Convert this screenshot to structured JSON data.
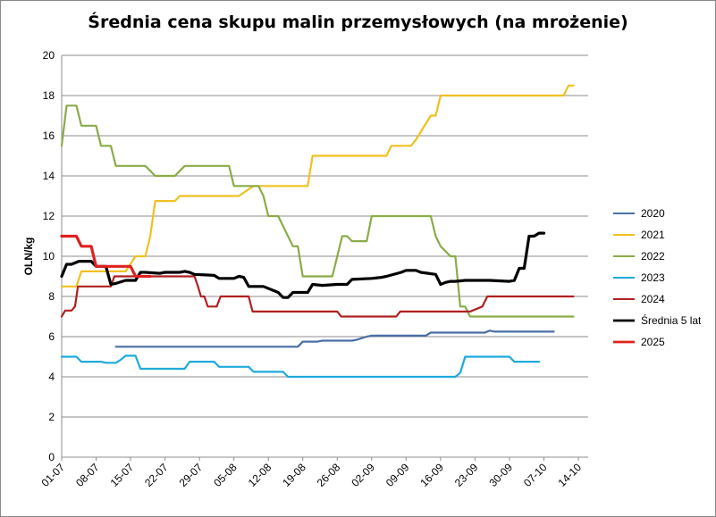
{
  "chart_data": {
    "type": "line",
    "title": "Średnia cena skupu malin przemysłowych (na mrożenie)",
    "ylabel": "OLN/kg",
    "xlabel": "",
    "ylim": [
      0,
      20
    ],
    "yticks": [
      "0",
      "2",
      "4",
      "6",
      "8",
      "10",
      "12",
      "14",
      "16",
      "18",
      "20"
    ],
    "xlim": [
      0,
      107
    ],
    "xticks": [
      {
        "label": "01-07",
        "x": 0
      },
      {
        "label": "08-07",
        "x": 7
      },
      {
        "label": "15-07",
        "x": 14
      },
      {
        "label": "22-07",
        "x": 21
      },
      {
        "label": "29-07",
        "x": 28
      },
      {
        "label": "05-08",
        "x": 35
      },
      {
        "label": "12-08",
        "x": 42
      },
      {
        "label": "19-08",
        "x": 49
      },
      {
        "label": "26-08",
        "x": 56
      },
      {
        "label": "02-09",
        "x": 63
      },
      {
        "label": "09-09",
        "x": 70
      },
      {
        "label": "16-09",
        "x": 77
      },
      {
        "label": "23-09",
        "x": 84
      },
      {
        "label": "30-09",
        "x": 91
      },
      {
        "label": "07-10",
        "x": 98
      },
      {
        "label": "14-10",
        "x": 105
      }
    ],
    "grid": true,
    "legend_position": "right",
    "series": [
      {
        "name": "2020",
        "color": "#4a6fa5",
        "width": 2.2,
        "points": [
          [
            11,
            5.5
          ],
          [
            14,
            5.5
          ],
          [
            21,
            5.5
          ],
          [
            28,
            5.5
          ],
          [
            35,
            5.5
          ],
          [
            42,
            5.5
          ],
          [
            48,
            5.5
          ],
          [
            49,
            5.75
          ],
          [
            52,
            5.75
          ],
          [
            53,
            5.8
          ],
          [
            59,
            5.8
          ],
          [
            60,
            5.85
          ],
          [
            62,
            6.0
          ],
          [
            63,
            6.05
          ],
          [
            74,
            6.05
          ],
          [
            75,
            6.2
          ],
          [
            86,
            6.2
          ],
          [
            87,
            6.3
          ],
          [
            88,
            6.25
          ],
          [
            100,
            6.25
          ]
        ]
      },
      {
        "name": "2021",
        "color": "#f0c020",
        "width": 2.2,
        "points": [
          [
            0,
            8.5
          ],
          [
            3,
            8.5
          ],
          [
            4,
            9.25
          ],
          [
            8,
            9.25
          ],
          [
            13,
            9.25
          ],
          [
            15,
            10.0
          ],
          [
            17,
            10.0
          ],
          [
            18,
            11.0
          ],
          [
            19,
            12.75
          ],
          [
            23,
            12.75
          ],
          [
            24,
            13.0
          ],
          [
            36,
            13.0
          ],
          [
            39,
            13.5
          ],
          [
            48,
            13.5
          ],
          [
            50,
            13.5
          ],
          [
            51,
            15.0
          ],
          [
            56,
            15.0
          ],
          [
            66,
            15.0
          ],
          [
            67,
            15.5
          ],
          [
            71,
            15.5
          ],
          [
            72,
            15.8
          ],
          [
            73,
            16.2
          ],
          [
            75,
            17.0
          ],
          [
            76,
            17.0
          ],
          [
            77,
            18.0
          ],
          [
            85,
            18.0
          ],
          [
            102,
            18.0
          ],
          [
            103,
            18.5
          ],
          [
            104,
            18.5
          ]
        ]
      },
      {
        "name": "2022",
        "color": "#8aac48",
        "width": 2.2,
        "points": [
          [
            0,
            15.5
          ],
          [
            1,
            17.5
          ],
          [
            3,
            17.5
          ],
          [
            4,
            16.5
          ],
          [
            7,
            16.5
          ],
          [
            8,
            15.5
          ],
          [
            10,
            15.5
          ],
          [
            11,
            14.5
          ],
          [
            17,
            14.5
          ],
          [
            19,
            14.0
          ],
          [
            23,
            14.0
          ],
          [
            25,
            14.5
          ],
          [
            32,
            14.5
          ],
          [
            34,
            14.5
          ],
          [
            35,
            13.5
          ],
          [
            40,
            13.5
          ],
          [
            41,
            13.0
          ],
          [
            42,
            12.0
          ],
          [
            44,
            12.0
          ],
          [
            46,
            11.0
          ],
          [
            47,
            10.5
          ],
          [
            48,
            10.5
          ],
          [
            49,
            9.0
          ],
          [
            54,
            9.0
          ],
          [
            55,
            9.0
          ],
          [
            56,
            10.0
          ],
          [
            57,
            11.0
          ],
          [
            58,
            11.0
          ],
          [
            59,
            10.75
          ],
          [
            61,
            10.75
          ],
          [
            62,
            10.75
          ],
          [
            63,
            12.0
          ],
          [
            75,
            12.0
          ],
          [
            76,
            11.0
          ],
          [
            77,
            10.5
          ],
          [
            79,
            10.0
          ],
          [
            80,
            10.0
          ],
          [
            81,
            7.5
          ],
          [
            82,
            7.5
          ],
          [
            83,
            7.0
          ],
          [
            98,
            7.0
          ],
          [
            104,
            7.0
          ]
        ]
      },
      {
        "name": "2023",
        "color": "#1eaadc",
        "width": 2.2,
        "points": [
          [
            0,
            5.0
          ],
          [
            3,
            5.0
          ],
          [
            4,
            4.75
          ],
          [
            8,
            4.75
          ],
          [
            9,
            4.7
          ],
          [
            11,
            4.7
          ],
          [
            12,
            4.85
          ],
          [
            13,
            5.05
          ],
          [
            15,
            5.05
          ],
          [
            16,
            4.4
          ],
          [
            24,
            4.4
          ],
          [
            25,
            4.4
          ],
          [
            26,
            4.75
          ],
          [
            31,
            4.75
          ],
          [
            32,
            4.5
          ],
          [
            38,
            4.5
          ],
          [
            39,
            4.25
          ],
          [
            45,
            4.25
          ],
          [
            46,
            4.0
          ],
          [
            62,
            4.0
          ],
          [
            75,
            4.0
          ],
          [
            80,
            4.0
          ],
          [
            81,
            4.2
          ],
          [
            82,
            5.0
          ],
          [
            87,
            5.0
          ],
          [
            91,
            5.0
          ],
          [
            92,
            4.75
          ],
          [
            96,
            4.75
          ],
          [
            97,
            4.75
          ]
        ]
      },
      {
        "name": "2024",
        "color": "#b02020",
        "width": 2.2,
        "points": [
          [
            0,
            7.0
          ],
          [
            0.7,
            7.3
          ],
          [
            2,
            7.3
          ],
          [
            2.7,
            7.5
          ],
          [
            3.3,
            8.5
          ],
          [
            9,
            8.5
          ],
          [
            10,
            8.5
          ],
          [
            10.7,
            9.0
          ],
          [
            17,
            9.0
          ],
          [
            27,
            9.0
          ],
          [
            27.7,
            8.5
          ],
          [
            28.3,
            8.0
          ],
          [
            29,
            8.0
          ],
          [
            29.7,
            7.5
          ],
          [
            31.5,
            7.5
          ],
          [
            32.3,
            8.0
          ],
          [
            38,
            8.0
          ],
          [
            38.8,
            7.25
          ],
          [
            55,
            7.25
          ],
          [
            56,
            7.25
          ],
          [
            56.8,
            7.0
          ],
          [
            67,
            7.0
          ],
          [
            68,
            7.0
          ],
          [
            68.8,
            7.25
          ],
          [
            83,
            7.25
          ],
          [
            85.5,
            7.5
          ],
          [
            86.5,
            8.0
          ],
          [
            104,
            8.0
          ]
        ]
      },
      {
        "name": "Średnia 5 lat",
        "color": "#000000",
        "width": 3.2,
        "points": [
          [
            0,
            9.0
          ],
          [
            1,
            9.6
          ],
          [
            2,
            9.6
          ],
          [
            3.5,
            9.75
          ],
          [
            6,
            9.75
          ],
          [
            7,
            9.5
          ],
          [
            9,
            9.5
          ],
          [
            10,
            8.6
          ],
          [
            11,
            8.65
          ],
          [
            13,
            8.8
          ],
          [
            15,
            8.8
          ],
          [
            16,
            9.2
          ],
          [
            17,
            9.2
          ],
          [
            20,
            9.15
          ],
          [
            21,
            9.2
          ],
          [
            24,
            9.2
          ],
          [
            25,
            9.25
          ],
          [
            26,
            9.2
          ],
          [
            27,
            9.1
          ],
          [
            31,
            9.05
          ],
          [
            32,
            8.9
          ],
          [
            35,
            8.9
          ],
          [
            36,
            9.0
          ],
          [
            37,
            8.95
          ],
          [
            38,
            8.5
          ],
          [
            41,
            8.5
          ],
          [
            44,
            8.2
          ],
          [
            45,
            7.95
          ],
          [
            46,
            7.95
          ],
          [
            47,
            8.2
          ],
          [
            50,
            8.2
          ],
          [
            51,
            8.6
          ],
          [
            53,
            8.55
          ],
          [
            56,
            8.6
          ],
          [
            58,
            8.6
          ],
          [
            59,
            8.85
          ],
          [
            63,
            8.9
          ],
          [
            65,
            8.95
          ],
          [
            66,
            9.0
          ],
          [
            69,
            9.2
          ],
          [
            70,
            9.3
          ],
          [
            72,
            9.3
          ],
          [
            73,
            9.2
          ],
          [
            76,
            9.1
          ],
          [
            77,
            8.6
          ],
          [
            78,
            8.7
          ],
          [
            79,
            8.75
          ],
          [
            80,
            8.75
          ],
          [
            82,
            8.8
          ],
          [
            87,
            8.8
          ],
          [
            91,
            8.75
          ],
          [
            92,
            8.8
          ],
          [
            93,
            9.4
          ],
          [
            94,
            9.4
          ],
          [
            95,
            11.0
          ],
          [
            96,
            11.0
          ],
          [
            97,
            11.15
          ],
          [
            98,
            11.15
          ]
        ]
      },
      {
        "name": "2025",
        "color": "#e02020",
        "width": 3.2,
        "points": [
          [
            0,
            11.0
          ],
          [
            3,
            11.0
          ],
          [
            4,
            10.5
          ],
          [
            6,
            10.5
          ],
          [
            7,
            9.5
          ],
          [
            14,
            9.5
          ],
          [
            15,
            9.0
          ],
          [
            18,
            9.0
          ]
        ]
      }
    ]
  }
}
